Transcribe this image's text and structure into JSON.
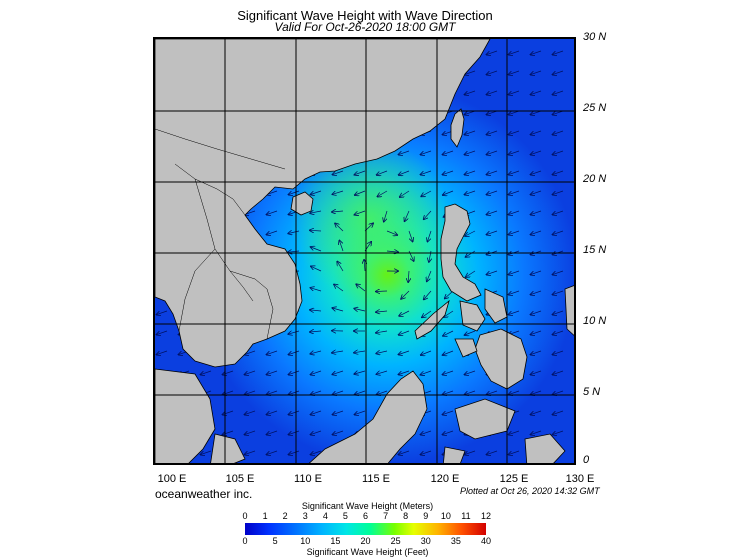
{
  "title": "Significant Wave Height with Wave Direction",
  "subtitle": "Valid For Oct-26-2020 18:00 GMT",
  "lat_labels": [
    "30 N",
    "25 N",
    "20 N",
    "15 N",
    "10 N",
    "5 N",
    "0"
  ],
  "lon_labels": [
    "100 E",
    "105 E",
    "110 E",
    "115 E",
    "120 E",
    "125 E",
    "130 E"
  ],
  "brand": "oceanweather inc.",
  "plotted": "Plotted at Oct 26, 2020 14:32 GMT",
  "colorbar": {
    "title_meters": "Significant Wave Height (Meters)",
    "ticks_meters": [
      "0",
      "1",
      "2",
      "3",
      "4",
      "5",
      "6",
      "7",
      "8",
      "9",
      "10",
      "11",
      "12"
    ],
    "ticks_feet": [
      "0",
      "5",
      "10",
      "15",
      "20",
      "25",
      "30",
      "35",
      "40"
    ],
    "title_feet": "Significant Wave Height (Feet)"
  },
  "colors": {
    "land": "#c0c0c0",
    "deep_low": "#0b3fe0",
    "peak": "#6cf000"
  }
}
